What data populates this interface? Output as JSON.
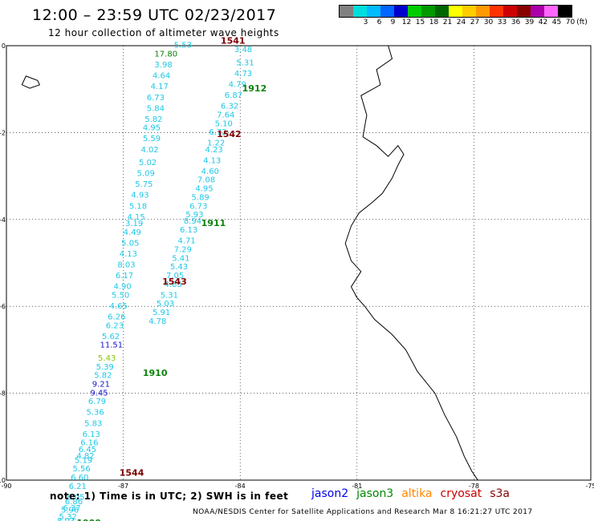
{
  "header": {
    "title": "12:00 – 23:59 UTC 02/23/2017",
    "subtitle": "12 hour collection of altimeter wave heights"
  },
  "legend": {
    "unit": "(ft)",
    "bins": [
      {
        "label": "",
        "color": "#808080"
      },
      {
        "label": "3",
        "color": "#00dddd"
      },
      {
        "label": "6",
        "color": "#00bbff"
      },
      {
        "label": "9",
        "color": "#0066ff"
      },
      {
        "label": "12",
        "color": "#0000cc"
      },
      {
        "label": "15",
        "color": "#00cc00"
      },
      {
        "label": "18",
        "color": "#009900"
      },
      {
        "label": "21",
        "color": "#006600"
      },
      {
        "label": "24",
        "color": "#ffff00"
      },
      {
        "label": "27",
        "color": "#ffcc00"
      },
      {
        "label": "30",
        "color": "#ff9900"
      },
      {
        "label": "33",
        "color": "#ff3300"
      },
      {
        "label": "36",
        "color": "#cc0000"
      },
      {
        "label": "39",
        "color": "#880000"
      },
      {
        "label": "42",
        "color": "#aa00aa"
      },
      {
        "label": "45",
        "color": "#ff66ff"
      },
      {
        "label": "70",
        "color": "#000000"
      }
    ]
  },
  "axes": {
    "lon_min": -90,
    "lon_max": -75,
    "lat_min": -10,
    "lat_max": 0,
    "x_ticks": [
      "-90",
      "-87",
      "-84",
      "-81",
      "-78",
      "-75"
    ],
    "y_ticks": [
      "0",
      "-2",
      "-4",
      "-6",
      "-8",
      "-10"
    ]
  },
  "colors": {
    "cyan": "#1ec8e6",
    "blue": "#1414d2",
    "green": "#0a820a",
    "lime": "#82c800",
    "orbit_red": "#800000",
    "orbit_green": "#0a820a"
  },
  "swh_readings": [
    {
      "lon": -85.7,
      "lat": -0.05,
      "v": "5.53",
      "c": "cyan"
    },
    {
      "lon": -84.15,
      "lat": -0.15,
      "v": "3.48",
      "c": "cyan"
    },
    {
      "lon": -86.2,
      "lat": -0.25,
      "v": "17.80",
      "c": "green"
    },
    {
      "lon": -84.1,
      "lat": -0.45,
      "v": "5.31",
      "c": "cyan"
    },
    {
      "lon": -86.2,
      "lat": -0.5,
      "v": "3.98",
      "c": "cyan"
    },
    {
      "lon": -84.15,
      "lat": -0.7,
      "v": "4.73",
      "c": "cyan"
    },
    {
      "lon": -86.25,
      "lat": -0.75,
      "v": "4.64",
      "c": "cyan"
    },
    {
      "lon": -84.3,
      "lat": -0.95,
      "v": "4.79",
      "c": "cyan"
    },
    {
      "lon": -86.3,
      "lat": -1.0,
      "v": "4.17",
      "c": "cyan"
    },
    {
      "lon": -84.4,
      "lat": -1.2,
      "v": "6.87",
      "c": "cyan"
    },
    {
      "lon": -86.4,
      "lat": -1.25,
      "v": "6.73",
      "c": "cyan"
    },
    {
      "lon": -84.5,
      "lat": -1.45,
      "v": "6.32",
      "c": "cyan"
    },
    {
      "lon": -86.4,
      "lat": -1.5,
      "v": "5.84",
      "c": "cyan"
    },
    {
      "lon": -84.6,
      "lat": -1.65,
      "v": "7.64",
      "c": "cyan"
    },
    {
      "lon": -86.45,
      "lat": -1.75,
      "v": "5.82",
      "c": "cyan"
    },
    {
      "lon": -84.65,
      "lat": -1.85,
      "v": "5.10",
      "c": "cyan"
    },
    {
      "lon": -86.5,
      "lat": -1.95,
      "v": "4.95",
      "c": "cyan"
    },
    {
      "lon": -84.8,
      "lat": -2.05,
      "v": "6.72",
      "c": "cyan"
    },
    {
      "lon": -86.5,
      "lat": -2.2,
      "v": "5.59",
      "c": "cyan"
    },
    {
      "lon": -84.85,
      "lat": -2.3,
      "v": "1.22",
      "c": "cyan"
    },
    {
      "lon": -84.9,
      "lat": -2.45,
      "v": "4.23",
      "c": "cyan"
    },
    {
      "lon": -86.55,
      "lat": -2.45,
      "v": "4.02",
      "c": "cyan"
    },
    {
      "lon": -84.95,
      "lat": -2.7,
      "v": "4.13",
      "c": "cyan"
    },
    {
      "lon": -86.6,
      "lat": -2.75,
      "v": "5.02",
      "c": "cyan"
    },
    {
      "lon": -85.0,
      "lat": -2.95,
      "v": "4.60",
      "c": "cyan"
    },
    {
      "lon": -86.65,
      "lat": -3.0,
      "v": "5.09",
      "c": "cyan"
    },
    {
      "lon": -85.1,
      "lat": -3.15,
      "v": "7.08",
      "c": "cyan"
    },
    {
      "lon": -86.7,
      "lat": -3.25,
      "v": "5.75",
      "c": "cyan"
    },
    {
      "lon": -85.15,
      "lat": -3.35,
      "v": "4.95",
      "c": "cyan"
    },
    {
      "lon": -86.8,
      "lat": -3.5,
      "v": "4.93",
      "c": "cyan"
    },
    {
      "lon": -85.25,
      "lat": -3.55,
      "v": "5.89",
      "c": "cyan"
    },
    {
      "lon": -86.85,
      "lat": -3.75,
      "v": "5.18",
      "c": "cyan"
    },
    {
      "lon": -85.3,
      "lat": -3.75,
      "v": "6.73",
      "c": "cyan"
    },
    {
      "lon": -85.4,
      "lat": -3.95,
      "v": "5.93",
      "c": "cyan"
    },
    {
      "lon": -86.9,
      "lat": -4.0,
      "v": "4.15",
      "c": "cyan"
    },
    {
      "lon": -85.45,
      "lat": -4.1,
      "v": "8.94",
      "c": "cyan"
    },
    {
      "lon": -86.95,
      "lat": -4.15,
      "v": "3.19",
      "c": "cyan"
    },
    {
      "lon": -85.55,
      "lat": -4.3,
      "v": "6.13",
      "c": "cyan"
    },
    {
      "lon": -87.0,
      "lat": -4.35,
      "v": "4.49",
      "c": "cyan"
    },
    {
      "lon": -85.6,
      "lat": -4.55,
      "v": "4.71",
      "c": "cyan"
    },
    {
      "lon": -87.05,
      "lat": -4.6,
      "v": "5.05",
      "c": "cyan"
    },
    {
      "lon": -85.7,
      "lat": -4.75,
      "v": "7.29",
      "c": "cyan"
    },
    {
      "lon": -87.1,
      "lat": -4.85,
      "v": "4.13",
      "c": "cyan"
    },
    {
      "lon": -85.75,
      "lat": -4.95,
      "v": "5.41",
      "c": "cyan"
    },
    {
      "lon": -87.15,
      "lat": -5.1,
      "v": "8.03",
      "c": "cyan"
    },
    {
      "lon": -85.8,
      "lat": -5.15,
      "v": "5.43",
      "c": "cyan"
    },
    {
      "lon": -87.2,
      "lat": -5.35,
      "v": "6.17",
      "c": "cyan"
    },
    {
      "lon": -85.9,
      "lat": -5.35,
      "v": "7.05",
      "c": "cyan"
    },
    {
      "lon": -85.95,
      "lat": -5.55,
      "v": "4.85",
      "c": "cyan"
    },
    {
      "lon": -87.25,
      "lat": -5.6,
      "v": "4.90",
      "c": "cyan"
    },
    {
      "lon": -86.05,
      "lat": -5.8,
      "v": "5.31",
      "c": "cyan"
    },
    {
      "lon": -87.3,
      "lat": -5.8,
      "v": "5.50",
      "c": "cyan"
    },
    {
      "lon": -86.15,
      "lat": -6.0,
      "v": "5.03",
      "c": "cyan"
    },
    {
      "lon": -87.35,
      "lat": -6.05,
      "v": "4.65",
      "c": "cyan"
    },
    {
      "lon": -86.25,
      "lat": -6.2,
      "v": "5.91",
      "c": "cyan"
    },
    {
      "lon": -87.4,
      "lat": -6.3,
      "v": "6.26",
      "c": "cyan"
    },
    {
      "lon": -86.35,
      "lat": -6.4,
      "v": "4.78",
      "c": "cyan"
    },
    {
      "lon": -87.45,
      "lat": -6.5,
      "v": "6.23",
      "c": "cyan"
    },
    {
      "lon": -87.55,
      "lat": -6.75,
      "v": "5.62",
      "c": "cyan"
    },
    {
      "lon": -87.6,
      "lat": -6.95,
      "v": "11.51",
      "c": "blue"
    },
    {
      "lon": -87.65,
      "lat": -7.25,
      "v": "5.43",
      "c": "lime"
    },
    {
      "lon": -87.7,
      "lat": -7.45,
      "v": "5.39",
      "c": "cyan"
    },
    {
      "lon": -87.75,
      "lat": -7.65,
      "v": "5.82",
      "c": "cyan"
    },
    {
      "lon": -87.8,
      "lat": -7.85,
      "v": "9.21",
      "c": "blue"
    },
    {
      "lon": -87.85,
      "lat": -8.05,
      "v": "9.45",
      "c": "blue"
    },
    {
      "lon": -87.9,
      "lat": -8.25,
      "v": "6.79",
      "c": "cyan"
    },
    {
      "lon": -87.95,
      "lat": -8.5,
      "v": "5.36",
      "c": "cyan"
    },
    {
      "lon": -88.0,
      "lat": -8.75,
      "v": "5.83",
      "c": "cyan"
    },
    {
      "lon": -88.05,
      "lat": -9.0,
      "v": "6.13",
      "c": "cyan"
    },
    {
      "lon": -88.1,
      "lat": -9.2,
      "v": "6.16",
      "c": "cyan"
    },
    {
      "lon": -88.15,
      "lat": -9.35,
      "v": "6.45",
      "c": "cyan"
    },
    {
      "lon": -88.2,
      "lat": -9.5,
      "v": "4.82",
      "c": "cyan"
    },
    {
      "lon": -88.25,
      "lat": -9.6,
      "v": "5.19",
      "c": "cyan"
    },
    {
      "lon": -88.3,
      "lat": -9.8,
      "v": "5.56",
      "c": "cyan"
    },
    {
      "lon": -88.35,
      "lat": -10.0,
      "v": "6.60",
      "c": "cyan"
    },
    {
      "lon": -88.4,
      "lat": -10.2,
      "v": "6.21",
      "c": "cyan"
    },
    {
      "lon": -88.45,
      "lat": -10.45,
      "v": "6.05",
      "c": "cyan"
    },
    {
      "lon": -88.5,
      "lat": -10.55,
      "v": "6.86",
      "c": "cyan"
    },
    {
      "lon": -88.55,
      "lat": -10.7,
      "v": "6.37",
      "c": "cyan"
    },
    {
      "lon": -88.6,
      "lat": -10.75,
      "v": "5.96",
      "c": "cyan"
    },
    {
      "lon": -88.65,
      "lat": -10.9,
      "v": "5.32",
      "c": "cyan"
    },
    {
      "lon": -88.7,
      "lat": -11.0,
      "v": "8.03",
      "c": "cyan"
    },
    {
      "lon": -88.75,
      "lat": -11.15,
      "v": "5.73",
      "c": "cyan"
    }
  ],
  "orbit_labels": [
    {
      "lon": -84.5,
      "lat": 0.05,
      "text": "1541",
      "c": "orbit_red"
    },
    {
      "lon": -83.95,
      "lat": -1.05,
      "text": "1912",
      "c": "orbit_green"
    },
    {
      "lon": -84.6,
      "lat": -2.1,
      "text": "1542",
      "c": "orbit_red"
    },
    {
      "lon": -85.0,
      "lat": -4.15,
      "text": "1911",
      "c": "orbit_green"
    },
    {
      "lon": -86.0,
      "lat": -5.5,
      "text": "1543",
      "c": "orbit_red"
    },
    {
      "lon": -86.5,
      "lat": -7.6,
      "text": "1910",
      "c": "orbit_green"
    },
    {
      "lon": -87.1,
      "lat": -9.9,
      "text": "1544",
      "c": "orbit_red"
    },
    {
      "lon": -88.2,
      "lat": -11.05,
      "text": "1909",
      "c": "orbit_green"
    }
  ],
  "footer": {
    "note": "note: 1) Time is in UTC; 2) SWH is in feet",
    "satellites": [
      {
        "name": "jason2",
        "color": "#0000ee"
      },
      {
        "name": "jason3",
        "color": "#008800"
      },
      {
        "name": "altika",
        "color": "#ff8800"
      },
      {
        "name": "cryosat",
        "color": "#cc0000"
      },
      {
        "name": "s3a",
        "color": "#880000"
      }
    ],
    "credit": "NOAA/NESDIS Center for Satellite Applications and Research   Mar  8 16:21:27 UTC 2017"
  }
}
